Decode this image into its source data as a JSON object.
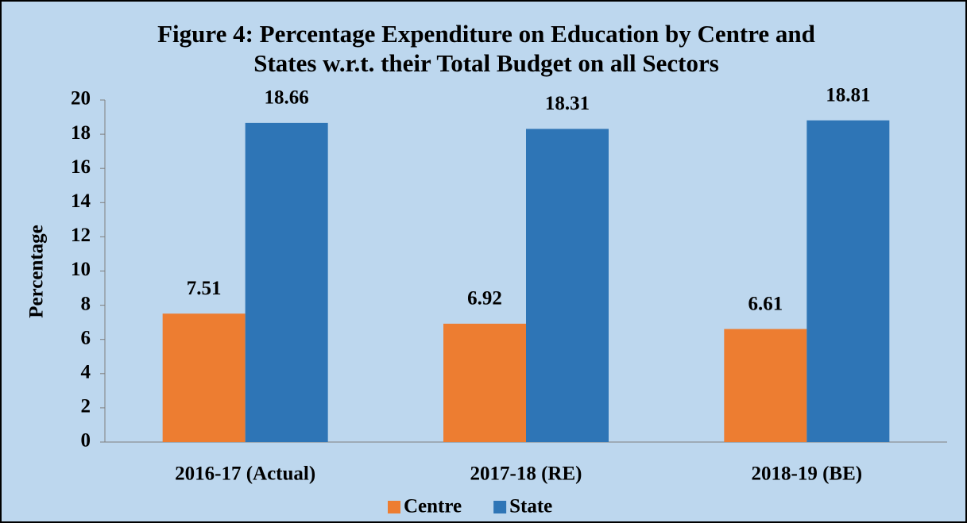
{
  "chart_data": {
    "type": "bar",
    "title": "Figure 4: Percentage Expenditure on Education by Centre and States w.r.t. their Total Budget on all Sectors",
    "y_label": "Percentage",
    "categories": [
      "2016-17 (Actual)",
      "2017-18 (RE)",
      "2018-19 (BE)"
    ],
    "series": [
      {
        "name": "Centre",
        "color": "#ed7d31",
        "values": [
          7.51,
          6.92,
          6.61
        ]
      },
      {
        "name": "State",
        "color": "#2e75b6",
        "values": [
          18.66,
          18.31,
          18.81
        ]
      }
    ],
    "ylim": [
      0,
      20
    ],
    "yticks": [
      0,
      2,
      4,
      6,
      8,
      10,
      12,
      14,
      16,
      18,
      20
    ],
    "grid": false,
    "legend": "bottom"
  }
}
